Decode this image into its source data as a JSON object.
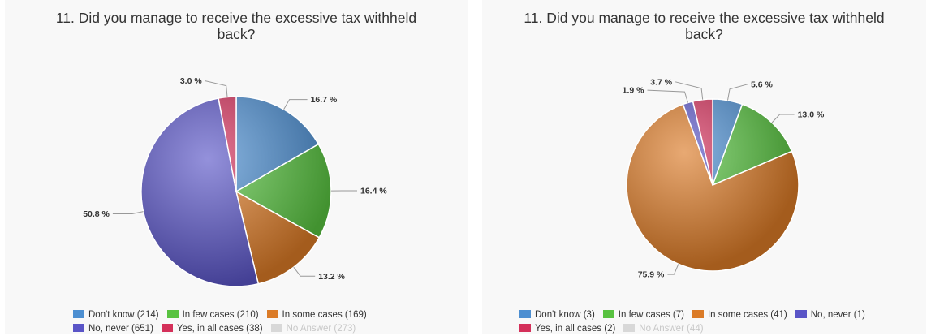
{
  "colors": {
    "dont_know": "#4d8fd1",
    "in_few_cases": "#58c240",
    "in_some_cases": "#db7b27",
    "no_never": "#5a55c7",
    "yes_all_cases": "#d4305a",
    "no_answer": "#d8d8d8"
  },
  "chart_data": [
    {
      "type": "pie",
      "title": "11. Did you manage to receive the excessive tax withheld back?",
      "title_lines": [
        "11. Did you manage to receive the excessive tax withheld",
        "back?"
      ],
      "slices": [
        {
          "key": "dont_know",
          "value": 16.7,
          "label": "16.7 %"
        },
        {
          "key": "in_few_cases",
          "value": 16.4,
          "label": "16.4 %"
        },
        {
          "key": "in_some_cases",
          "value": 13.2,
          "label": "13.2 %"
        },
        {
          "key": "no_never",
          "value": 50.8,
          "label": "50.8 %"
        },
        {
          "key": "yes_all_cases",
          "value": 3.0,
          "label": "3.0 %"
        }
      ],
      "legend": [
        {
          "key": "dont_know",
          "text": "Don't know (214)"
        },
        {
          "key": "in_few_cases",
          "text": "In few cases (210)"
        },
        {
          "key": "in_some_cases",
          "text": "In some cases (169)"
        },
        {
          "key": "no_never",
          "text": "No, never (651)"
        },
        {
          "key": "yes_all_cases",
          "text": "Yes, in all cases (38)"
        },
        {
          "key": "no_answer",
          "text": "No Answer (273)"
        }
      ],
      "legend_rows": [
        3,
        3
      ]
    },
    {
      "type": "pie",
      "title": "11. Did you manage to receive the excessive tax withheld back?",
      "title_lines": [
        "11. Did you manage to receive the excessive tax withheld",
        "back?"
      ],
      "slices": [
        {
          "key": "dont_know",
          "value": 5.6,
          "label": "5.6 %"
        },
        {
          "key": "in_few_cases",
          "value": 13.0,
          "label": "13.0 %"
        },
        {
          "key": "in_some_cases",
          "value": 75.9,
          "label": "75.9 %"
        },
        {
          "key": "no_never",
          "value": 1.9,
          "label": "1.9 %"
        },
        {
          "key": "yes_all_cases",
          "value": 3.7,
          "label": "3.7 %"
        }
      ],
      "legend": [
        {
          "key": "dont_know",
          "text": "Don't know (3)"
        },
        {
          "key": "in_few_cases",
          "text": "In few cases (7)"
        },
        {
          "key": "in_some_cases",
          "text": "In some cases (41)"
        },
        {
          "key": "no_never",
          "text": "No, never (1)"
        },
        {
          "key": "yes_all_cases",
          "text": "Yes, in all cases (2)"
        },
        {
          "key": "no_answer",
          "text": "No Answer (44)"
        }
      ],
      "legend_rows": [
        4,
        2
      ]
    }
  ]
}
